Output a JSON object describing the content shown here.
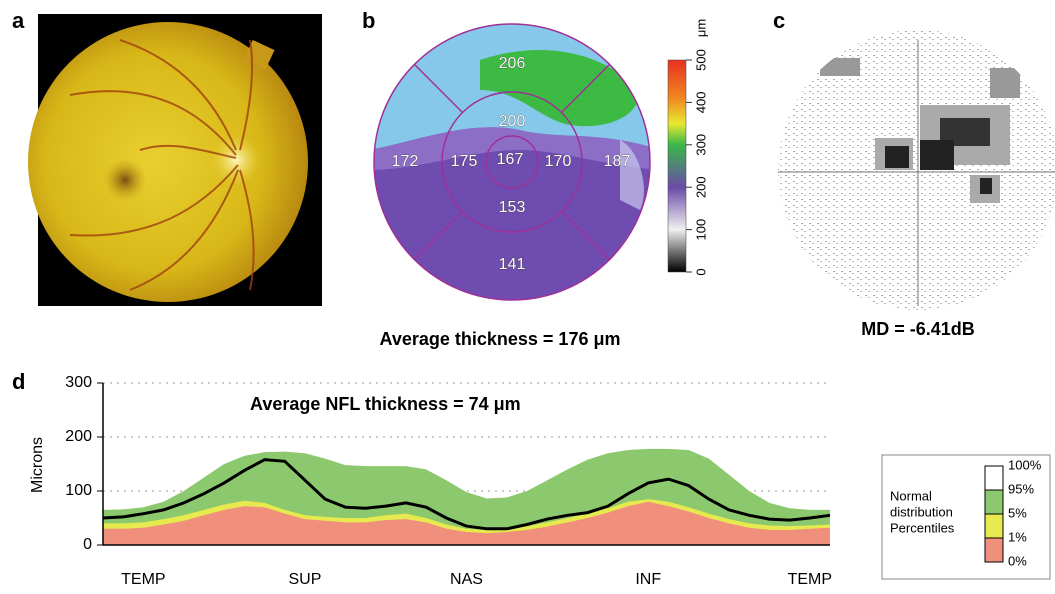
{
  "figure": {
    "a": {
      "label": "a"
    },
    "b": {
      "label": "b",
      "sectors": [
        206,
        200,
        172,
        175,
        167,
        170,
        187,
        153,
        141
      ],
      "colorbar": {
        "ticks": [
          0,
          100,
          200,
          300,
          400,
          500
        ],
        "unit": "μm"
      },
      "caption": "Average thickness = 176 μm"
    },
    "c": {
      "label": "c",
      "caption": "MD = -6.41dB"
    },
    "d": {
      "label": "d"
    }
  },
  "chart_data": {
    "type": "area",
    "title": "Average NFL thickness = 74 μm",
    "y_label": "Microns",
    "x": [
      0,
      1,
      2,
      3,
      4,
      5,
      6,
      7,
      8,
      9,
      10,
      11,
      12,
      13,
      14,
      15,
      16,
      17,
      18,
      19,
      20,
      21,
      22,
      23,
      24,
      25,
      26,
      27,
      28,
      29,
      30,
      31,
      32,
      33,
      34,
      35,
      36
    ],
    "xlim": [
      0,
      36
    ],
    "xticks": [
      {
        "value": 2,
        "label": "TEMP"
      },
      {
        "value": 10,
        "label": "SUP"
      },
      {
        "value": 18,
        "label": "NAS"
      },
      {
        "value": 27,
        "label": "INF"
      },
      {
        "value": 35,
        "label": "TEMP"
      }
    ],
    "ylim": [
      0,
      300
    ],
    "yticks": [
      0,
      100,
      200,
      300
    ],
    "grid": true,
    "series": [
      {
        "color": "#8cc86e",
        "values": [
          65,
          66,
          70,
          80,
          100,
          125,
          150,
          165,
          172,
          173,
          170,
          160,
          148,
          146,
          146,
          146,
          140,
          120,
          98,
          86,
          88,
          100,
          120,
          140,
          158,
          170,
          176,
          178,
          178,
          176,
          160,
          130,
          100,
          78,
          68,
          65,
          65
        ]
      },
      {
        "color": "#e6ea4e",
        "values": [
          40,
          40,
          42,
          48,
          55,
          65,
          75,
          82,
          78,
          65,
          55,
          52,
          50,
          50,
          55,
          58,
          50,
          38,
          30,
          28,
          30,
          35,
          42,
          50,
          58,
          68,
          80,
          85,
          80,
          70,
          58,
          48,
          40,
          36,
          35,
          36,
          38
        ]
      },
      {
        "color": "#f0907c",
        "values": [
          30,
          30,
          32,
          38,
          45,
          55,
          65,
          72,
          70,
          58,
          48,
          45,
          42,
          42,
          46,
          48,
          42,
          30,
          24,
          22,
          24,
          28,
          34,
          42,
          50,
          60,
          72,
          80,
          72,
          62,
          50,
          40,
          32,
          28,
          28,
          30,
          32
        ]
      },
      {
        "color": "#000000",
        "line": true,
        "values": [
          50,
          52,
          58,
          65,
          78,
          95,
          115,
          138,
          158,
          155,
          120,
          85,
          70,
          68,
          72,
          78,
          70,
          50,
          35,
          30,
          30,
          38,
          48,
          55,
          60,
          72,
          95,
          115,
          122,
          110,
          85,
          65,
          55,
          48,
          46,
          50,
          55
        ]
      }
    ],
    "legend": {
      "title": [
        "Normal",
        "distribution",
        "Percentiles"
      ],
      "labels": [
        "100%",
        "95%",
        "5%",
        "1%",
        "0%"
      ]
    }
  }
}
